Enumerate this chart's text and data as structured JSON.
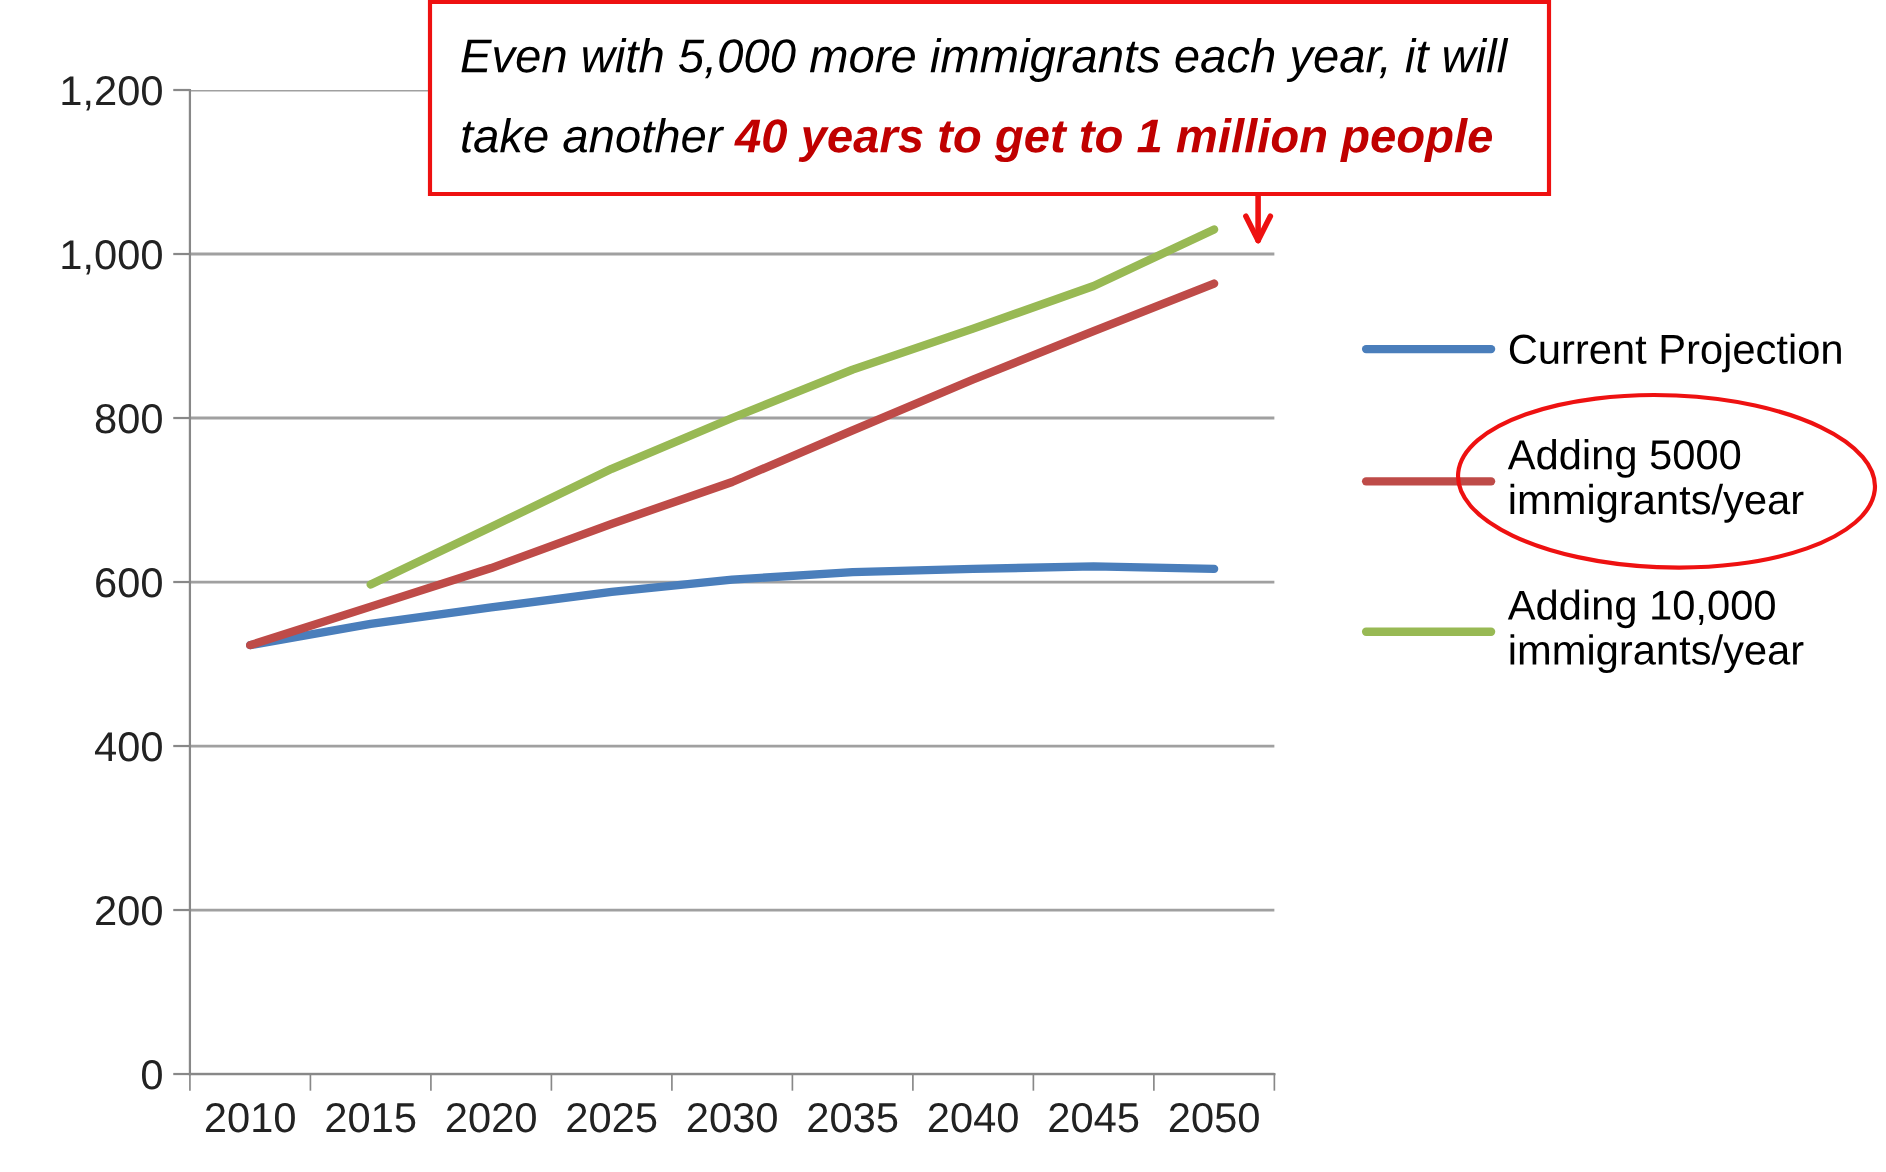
{
  "chart_data": {
    "type": "line",
    "categories": [
      "2010",
      "2015",
      "2020",
      "2025",
      "2030",
      "2035",
      "2040",
      "2045",
      "2050"
    ],
    "series": [
      {
        "name": "Current Projection",
        "color": "#4a7ebb",
        "values": [
          523,
          549,
          569,
          588,
          603,
          612,
          616,
          619,
          616
        ]
      },
      {
        "name": "Adding 5000\nimmigrants/year",
        "color": "#be4b48",
        "values": [
          523,
          570,
          617,
          671,
          722,
          785,
          847,
          906,
          964
        ]
      },
      {
        "name": "Adding 10,000\nimmigrants/year",
        "color": "#98b954",
        "values": [
          null,
          597,
          667,
          738,
          800,
          859,
          909,
          961,
          1030
        ]
      }
    ],
    "ylim": [
      0,
      1200
    ],
    "yticks": [
      0,
      200,
      400,
      600,
      800,
      {
        "value": 1000,
        "label": "1,000"
      },
      {
        "value": 1200,
        "label": "1,200"
      }
    ],
    "grid": "y",
    "legend": "right",
    "marker": "none",
    "line_style": "solid",
    "annotations": [
      "Even with 5,000 more immigrants each year, it will",
      "take another",
      "40 years to get to 1 million people"
    ]
  }
}
